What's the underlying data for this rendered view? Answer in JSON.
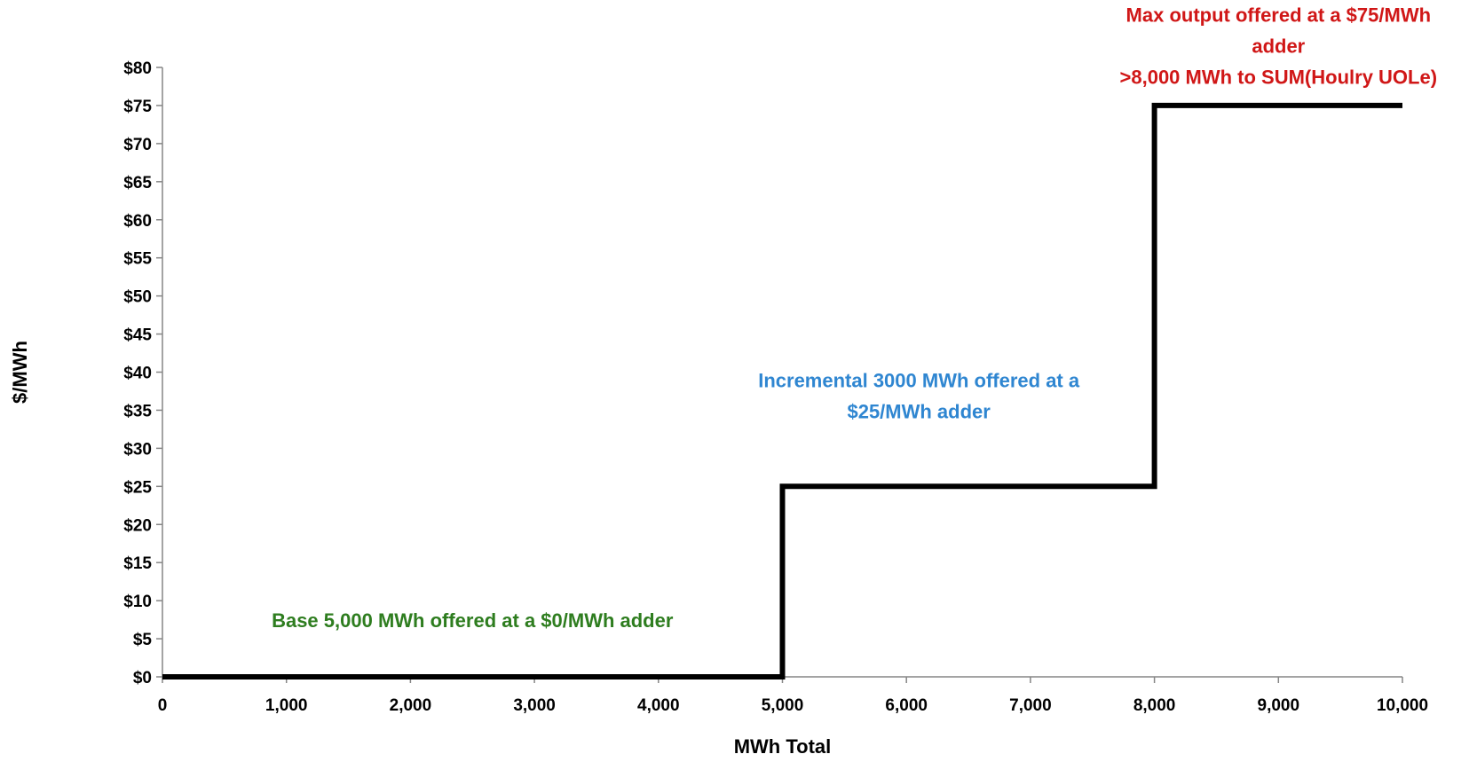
{
  "chart_data": {
    "type": "line",
    "title": "",
    "xlabel": "MWh Total",
    "ylabel": "$/MWh",
    "xlim": [
      0,
      10000
    ],
    "ylim": [
      0,
      80
    ],
    "grid": false,
    "legend": "none",
    "x_ticks": [
      0,
      1000,
      2000,
      3000,
      4000,
      5000,
      6000,
      7000,
      8000,
      9000,
      10000
    ],
    "x_tick_labels": [
      "0",
      "1,000",
      "2,000",
      "3,000",
      "4,000",
      "5,000",
      "6,000",
      "7,000",
      "8,000",
      "9,000",
      "10,000"
    ],
    "y_ticks": [
      0,
      5,
      10,
      15,
      20,
      25,
      30,
      35,
      40,
      45,
      50,
      55,
      60,
      65,
      70,
      75,
      80
    ],
    "y_tick_labels": [
      "$0",
      "$5",
      "$10",
      "$15",
      "$20",
      "$25",
      "$30",
      "$35",
      "$40",
      "$45",
      "$50",
      "$55",
      "$60",
      "$65",
      "$70",
      "$75",
      "$80"
    ],
    "series": [
      {
        "color": "#000000",
        "x": [
          0,
          5000,
          5000,
          8000,
          8000,
          10000
        ],
        "y": [
          0,
          0,
          25,
          25,
          75,
          75
        ]
      }
    ],
    "annotations": [
      {
        "lines": [
          "Base  5,000  MWh offered at a $0/MWh adder"
        ],
        "color": "#2e7d1f",
        "x": 2500,
        "y": 6.5
      },
      {
        "lines": [
          "Incremental 3000  MWh offered at a",
          "$25/MWh adder"
        ],
        "color": "#2f86d1",
        "x": 6100,
        "y": 38
      },
      {
        "lines": [
          "Max output offered at a $75/MWh",
          "adder",
          ">8,000 MWh to SUM(Houlry UOLe)"
        ],
        "color": "#d01717",
        "x": 9000,
        "y": 86
      }
    ]
  }
}
